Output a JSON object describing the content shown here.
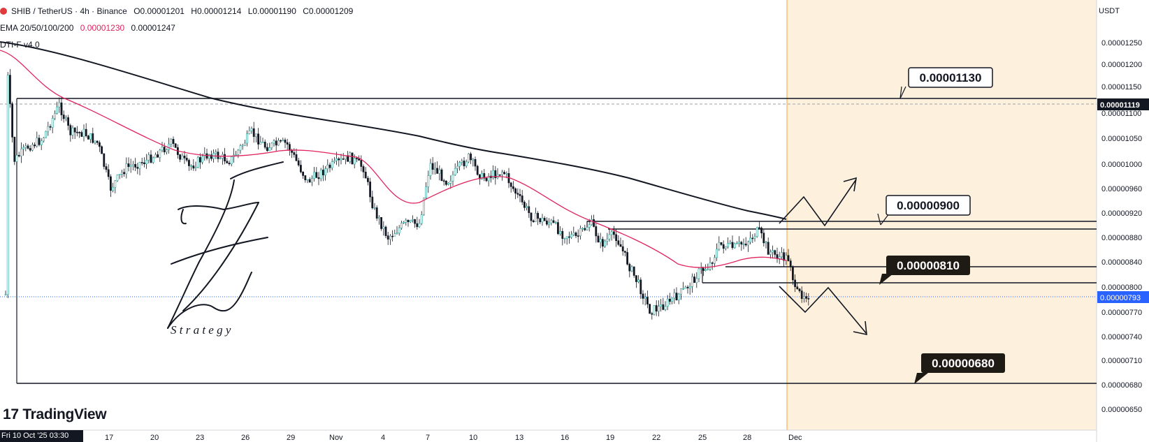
{
  "legend": {
    "symbol": "SHIB / TetherUS · 4h · Binance",
    "open": "O0.00001201",
    "high": "H0.00001214",
    "low": "L0.00001190",
    "close": "C0.00001209",
    "ema_label": "EMA 20/50/100/200",
    "ema_val1": "0.00001230",
    "ema_val2": "0.00001247",
    "indicator": "DTI-F v4.0"
  },
  "price_axis": {
    "unit": "USDT",
    "ticks": [
      "0.00001250",
      "0.00001200",
      "0.00001150",
      "0.00001100",
      "0.00001050",
      "0.00001000",
      "0.00000960",
      "0.00000920",
      "0.00000880",
      "0.00000840",
      "0.00000800",
      "0.00000770",
      "0.00000740",
      "0.00000710",
      "0.00000680",
      "0.00000650"
    ],
    "badge_high": "0.00001119",
    "badge_current": "0.00000793"
  },
  "time_axis": {
    "badge": "Fri 10 Oct '25   03:30",
    "ticks": [
      "17",
      "20",
      "23",
      "26",
      "29",
      "Nov",
      "4",
      "7",
      "10",
      "13",
      "16",
      "19",
      "22",
      "25",
      "28",
      "Dec"
    ]
  },
  "annotations": {
    "target_1": "0.00001130",
    "target_2": "0.00000900",
    "target_3": "0.00000810",
    "target_4": "0.00000680",
    "signature": "S t r a t e g y"
  },
  "watermark": "TradingView",
  "colors": {
    "up": "#26a69a",
    "candle": "#131722",
    "ema_red": "#e0245e",
    "ema_black": "#131722",
    "zone_fill": "#fdf1de",
    "zone_line": "#f2b45a",
    "current_price": "#2962ff"
  }
}
